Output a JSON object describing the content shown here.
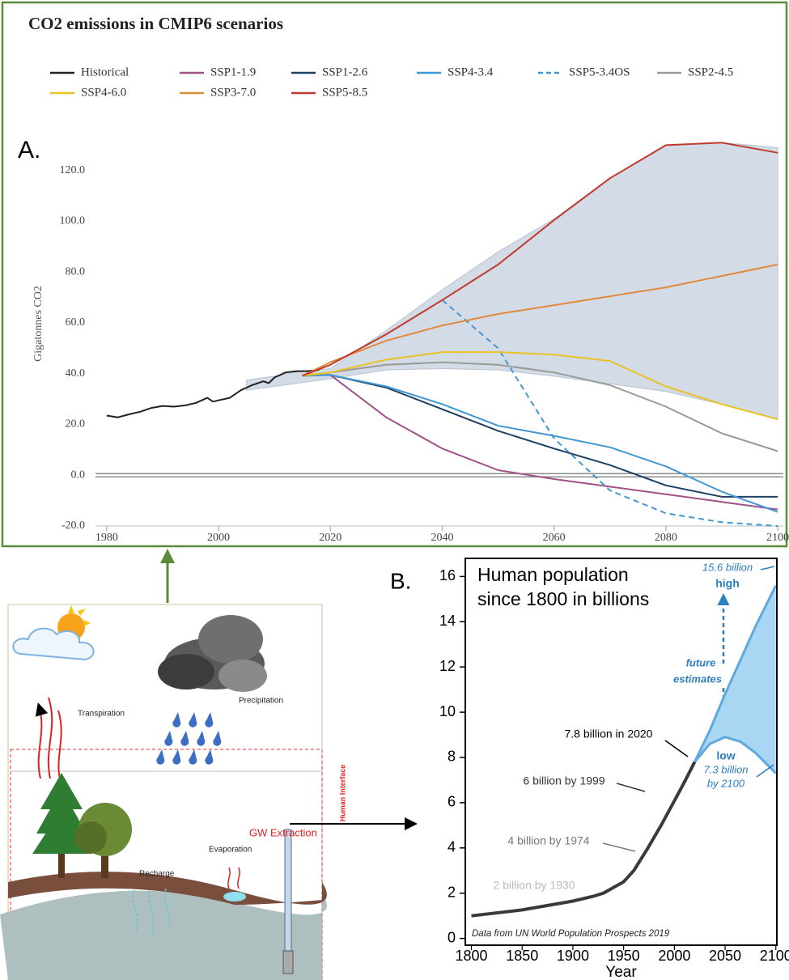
{
  "chart_data": [
    {
      "type": "line",
      "panel_label": "A.",
      "title": "CO2 emissions in CMIP6 scenarios",
      "y_label": "Gigatonnes CO2",
      "xlim": [
        1978,
        2101
      ],
      "xticks": [
        1980,
        2000,
        2020,
        2040,
        2060,
        2080,
        2100
      ],
      "ylim": [
        -20,
        133
      ],
      "yticks": [
        {
          "value": -20,
          "label": "-20.0"
        },
        {
          "value": 0,
          "label": "0.0"
        },
        {
          "value": 20,
          "label": "20.0"
        },
        {
          "value": 40,
          "label": "40.0"
        },
        {
          "value": 60,
          "label": "60.0"
        },
        {
          "value": 80,
          "label": "80.0"
        },
        {
          "value": 100,
          "label": "100.0"
        },
        {
          "value": 120,
          "label": "120.0"
        }
      ],
      "band": {
        "color": "#d3dce6",
        "x": [
          2005,
          2010,
          2015,
          2020,
          2030,
          2040,
          2050,
          2060,
          2070,
          2080,
          2090,
          2100
        ],
        "upper": [
          37.5,
          39,
          41,
          42,
          57,
          73,
          88,
          101,
          117,
          130,
          131,
          129
        ],
        "lower": [
          33.5,
          35,
          36.5,
          38,
          41.5,
          42,
          41.5,
          39,
          36,
          33,
          28,
          22
        ]
      },
      "series": [
        {
          "name": "Historical",
          "color": "#222222",
          "x": [
            1980,
            1982,
            1984,
            1986,
            1988,
            1990,
            1992,
            1994,
            1996,
            1998,
            1999,
            2000,
            2002,
            2004,
            2006,
            2008,
            2009,
            2010,
            2012,
            2014,
            2016,
            2018
          ],
          "values": [
            23.5,
            22.8,
            24,
            25,
            26.5,
            27.3,
            27,
            27.5,
            28.5,
            30.5,
            29,
            29.5,
            30.5,
            33.5,
            35.5,
            37,
            36.3,
            38.5,
            40.5,
            41,
            41,
            41.5
          ]
        },
        {
          "name": "SSP1-1.9",
          "color": "#a2508a",
          "x": [
            2015,
            2020,
            2030,
            2040,
            2050,
            2060,
            2070,
            2080,
            2090,
            2100
          ],
          "values": [
            39.2,
            39.5,
            22.8,
            10.5,
            2,
            -1.5,
            -4.5,
            -7.5,
            -10.5,
            -13.5
          ]
        },
        {
          "name": "SSP1-2.6",
          "color": "#1d3f63",
          "x": [
            2015,
            2020,
            2030,
            2040,
            2050,
            2060,
            2070,
            2080,
            2090,
            2100
          ],
          "values": [
            39.2,
            39.5,
            34.5,
            26,
            17.5,
            10.5,
            4,
            -4,
            -8.5,
            -8.5
          ]
        },
        {
          "name": "SSP4-3.4",
          "color": "#3f97d3",
          "x": [
            2015,
            2020,
            2030,
            2040,
            2050,
            2060,
            2070,
            2080,
            2090,
            2100
          ],
          "values": [
            39.2,
            39.5,
            35,
            28,
            19.5,
            15.5,
            11,
            3.5,
            -6.5,
            -14.5
          ]
        },
        {
          "name": "SSP5-3.4OS",
          "color": "#3f97d3",
          "dash": true,
          "x": [
            2015,
            2020,
            2030,
            2040,
            2050,
            2060,
            2070,
            2080,
            2090,
            2100
          ],
          "values": [
            null,
            null,
            null,
            69,
            50,
            14.5,
            -6,
            -15,
            -18.5,
            -20
          ]
        },
        {
          "name": "SSP2-4.5",
          "color": "#9a9a9a",
          "x": [
            2015,
            2020,
            2030,
            2040,
            2050,
            2060,
            2070,
            2080,
            2090,
            2100
          ],
          "values": [
            39.2,
            40.5,
            43.5,
            44.5,
            43.5,
            40.5,
            35.5,
            27,
            16.5,
            9.5
          ]
        },
        {
          "name": "SSP4-6.0",
          "color": "#e9c225",
          "x": [
            2015,
            2020,
            2030,
            2040,
            2050,
            2060,
            2070,
            2080,
            2090,
            2100
          ],
          "values": [
            39.2,
            40.5,
            45.5,
            48.5,
            48.5,
            47.5,
            45,
            35,
            28,
            22
          ]
        },
        {
          "name": "SSP3-7.0",
          "color": "#e08a3c",
          "x": [
            2015,
            2020,
            2030,
            2040,
            2050,
            2060,
            2070,
            2080,
            2090,
            2100
          ],
          "values": [
            39.2,
            44.5,
            53,
            59,
            63.5,
            67,
            70.5,
            74,
            78.5,
            83
          ]
        },
        {
          "name": "SSP5-8.5",
          "color": "#c0392b",
          "x": [
            2015,
            2020,
            2030,
            2040,
            2050,
            2060,
            2070,
            2080,
            2090,
            2100
          ],
          "values": [
            39.2,
            43.5,
            55.5,
            69,
            83,
            100.5,
            117,
            130,
            131,
            127
          ]
        }
      ]
    },
    {
      "type": "line",
      "panel_label": "B.",
      "title_lines": [
        "Human population",
        "since 1800 in billions"
      ],
      "x_label": "Year",
      "xlim": [
        1794,
        2101
      ],
      "xticks": [
        1800,
        1850,
        1900,
        1950,
        2000,
        2050,
        2100
      ],
      "ylim": [
        -0.3,
        16.8
      ],
      "yticks": [
        0,
        2,
        4,
        6,
        8,
        10,
        12,
        14,
        16
      ],
      "note": "Data from UN World Population Prospects 2019",
      "series": [
        {
          "color": "#3a3a3a",
          "x": [
            1800,
            1850,
            1900,
            1920,
            1930,
            1950,
            1960,
            1974,
            1987,
            1999,
            2011,
            2020
          ],
          "values": [
            1,
            1.26,
            1.65,
            1.86,
            2,
            2.5,
            3,
            4,
            5,
            6,
            7,
            7.8
          ]
        }
      ],
      "projection": {
        "color": "#5fa9dc",
        "fill": "#a9d6f3",
        "x": [
          2020,
          2035,
          2050,
          2065,
          2080,
          2100
        ],
        "high": [
          7.8,
          9.2,
          10.8,
          12.3,
          13.8,
          15.6
        ],
        "low": [
          7.8,
          8.6,
          8.9,
          8.7,
          8.2,
          7.3
        ]
      },
      "annotations": [
        "15.6 billion",
        "high",
        "future",
        "estimates",
        "low",
        "7.3 billion",
        "by 2100",
        "7.8 billion in 2020",
        "6 billion by 1999",
        "4 billion by 1974",
        "2 billion by 1930"
      ]
    }
  ],
  "diagram": {
    "transpiration": "Transpiration",
    "precipitation": "Precipitation",
    "recharge": "Recharge",
    "evaporation": "Evaporation",
    "gw_extraction": "GW Extraction",
    "human_interface": "Human Interface"
  }
}
